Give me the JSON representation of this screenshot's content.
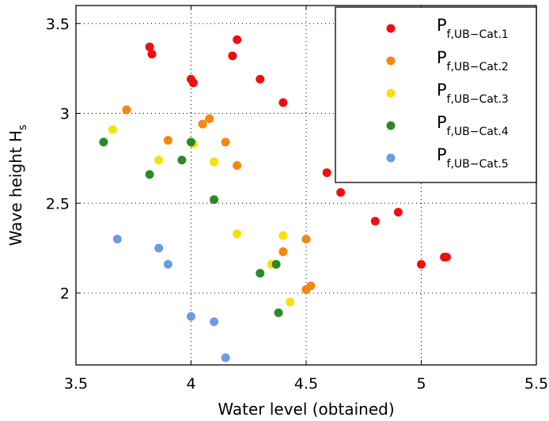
{
  "chart_data": {
    "type": "scatter",
    "title": "",
    "xlabel": "Water level (obtained)",
    "ylabel": "Wave height H",
    "ylabel_sub": "s",
    "xlim": [
      3.5,
      5.5
    ],
    "ylim": [
      1.6,
      3.6
    ],
    "xticks": [
      3.5,
      4,
      4.5,
      5,
      5.5
    ],
    "xtick_labels": [
      "3.5",
      "4",
      "4.5",
      "5",
      "5.5"
    ],
    "yticks": [
      2,
      2.5,
      3,
      3.5
    ],
    "ytick_labels": [
      "2",
      "2.5",
      "3",
      "3.5"
    ],
    "grid": true,
    "legend_position": "top-right",
    "series": [
      {
        "name": "P",
        "name_sub": "f,UB−Cat.1",
        "color": "#ef0f0f",
        "x": [
          3.82,
          3.83,
          4.2,
          4.18,
          4.0,
          4.01,
          4.3,
          4.4,
          4.59,
          4.65,
          4.8,
          4.9,
          5.0,
          5.1,
          5.11
        ],
        "y": [
          3.37,
          3.33,
          3.41,
          3.32,
          3.19,
          3.17,
          3.19,
          3.06,
          2.67,
          2.56,
          2.4,
          2.45,
          2.16,
          2.2,
          2.2
        ]
      },
      {
        "name": "P",
        "name_sub": "f,UB−Cat.2",
        "color": "#f5860f",
        "x": [
          3.72,
          4.08,
          4.05,
          3.9,
          4.15,
          4.2,
          4.5,
          4.4,
          4.5,
          4.52
        ],
        "y": [
          3.02,
          2.97,
          2.94,
          2.85,
          2.84,
          2.71,
          2.3,
          2.23,
          2.02,
          2.04
        ]
      },
      {
        "name": "P",
        "name_sub": "f,UB−Cat.3",
        "color": "#f5e00f",
        "x": [
          3.66,
          4.01,
          3.86,
          4.1,
          4.2,
          4.4,
          4.35,
          4.43
        ],
        "y": [
          2.91,
          2.83,
          2.74,
          2.73,
          2.33,
          2.32,
          2.16,
          1.95
        ]
      },
      {
        "name": "P",
        "name_sub": "f,UB−Cat.4",
        "color": "#2a8a2a",
        "x": [
          3.62,
          4.0,
          3.96,
          3.82,
          4.1,
          4.37,
          4.3,
          4.38
        ],
        "y": [
          2.84,
          2.84,
          2.74,
          2.66,
          2.52,
          2.16,
          2.11,
          1.89
        ]
      },
      {
        "name": "P",
        "name_sub": "f,UB−Cat.5",
        "color": "#6b9be6",
        "x": [
          3.68,
          3.86,
          3.9,
          4.0,
          4.1,
          4.15
        ],
        "y": [
          2.3,
          2.25,
          2.16,
          1.87,
          1.84,
          1.64
        ]
      }
    ]
  }
}
